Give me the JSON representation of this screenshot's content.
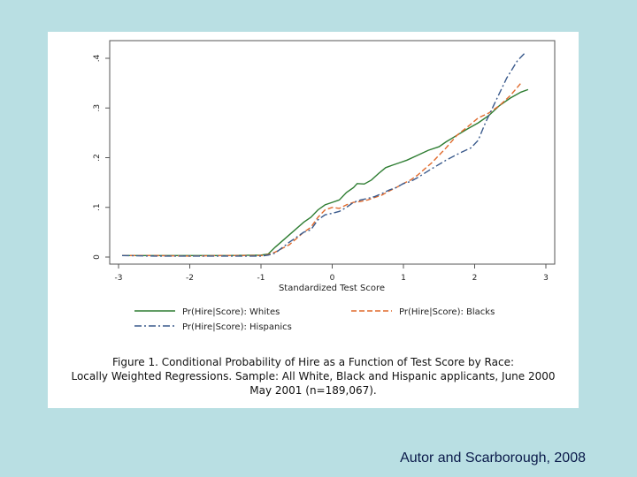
{
  "chart_data": {
    "type": "line",
    "xlabel": "Standardized Test Score",
    "ylabel": "",
    "xlim": [
      -3,
      3
    ],
    "ylim": [
      0,
      0.4
    ],
    "xticks": [
      "-3",
      "-2",
      "-1",
      "0",
      "1",
      "2",
      "3"
    ],
    "yticks": [
      "0",
      ".1",
      ".2",
      ".3",
      ".4"
    ],
    "grid": false,
    "legend_position": "bottom",
    "series": [
      {
        "name": "Pr(Hire|Score): Whites",
        "color": "#2e7d32",
        "style": "solid",
        "x": [
          -2.95,
          -2.5,
          -2.0,
          -1.5,
          -1.0,
          -0.9,
          -0.8,
          -0.6,
          -0.4,
          -0.3,
          -0.2,
          -0.1,
          0.0,
          0.1,
          0.2,
          0.3,
          0.35,
          0.45,
          0.55,
          0.65,
          0.75,
          0.85,
          0.95,
          1.05,
          1.2,
          1.35,
          1.5,
          1.6,
          1.75,
          1.9,
          2.05,
          2.2,
          2.35,
          2.5,
          2.65,
          2.75
        ],
        "y": [
          0.003,
          0.003,
          0.003,
          0.003,
          0.004,
          0.006,
          0.02,
          0.045,
          0.07,
          0.08,
          0.095,
          0.105,
          0.11,
          0.115,
          0.13,
          0.14,
          0.148,
          0.147,
          0.155,
          0.168,
          0.18,
          0.185,
          0.19,
          0.195,
          0.205,
          0.215,
          0.222,
          0.232,
          0.245,
          0.258,
          0.27,
          0.285,
          0.305,
          0.32,
          0.332,
          0.337
        ]
      },
      {
        "name": "Pr(Hire|Score): Blacks",
        "color": "#e06a2c",
        "style": "dashed",
        "x": [
          -2.95,
          -2.5,
          -2.0,
          -1.5,
          -1.0,
          -0.9,
          -0.8,
          -0.6,
          -0.4,
          -0.3,
          -0.2,
          -0.1,
          0.0,
          0.1,
          0.2,
          0.3,
          0.4,
          0.5,
          0.6,
          0.7,
          0.8,
          0.9,
          1.0,
          1.1,
          1.2,
          1.4,
          1.6,
          1.75,
          1.9,
          2.05,
          2.2,
          2.35,
          2.5,
          2.65
        ],
        "y": [
          0.003,
          0.003,
          0.002,
          0.003,
          0.003,
          0.005,
          0.01,
          0.025,
          0.05,
          0.06,
          0.08,
          0.095,
          0.1,
          0.098,
          0.105,
          0.11,
          0.112,
          0.115,
          0.12,
          0.125,
          0.133,
          0.14,
          0.148,
          0.155,
          0.165,
          0.19,
          0.22,
          0.245,
          0.262,
          0.28,
          0.29,
          0.305,
          0.325,
          0.35
        ]
      },
      {
        "name": "Pr(Hire|Score): Hispanics",
        "color": "#3a5a8c",
        "style": "dashdot",
        "x": [
          -2.95,
          -2.5,
          -2.0,
          -1.5,
          -1.0,
          -0.9,
          -0.8,
          -0.6,
          -0.4,
          -0.3,
          -0.2,
          -0.1,
          0.0,
          0.1,
          0.2,
          0.3,
          0.4,
          0.5,
          0.6,
          0.7,
          0.8,
          0.9,
          1.0,
          1.1,
          1.2,
          1.4,
          1.6,
          1.8,
          1.95,
          2.05,
          2.15,
          2.3,
          2.45,
          2.6,
          2.7
        ],
        "y": [
          0.003,
          0.002,
          0.002,
          0.002,
          0.002,
          0.004,
          0.008,
          0.03,
          0.05,
          0.055,
          0.075,
          0.085,
          0.088,
          0.092,
          0.1,
          0.11,
          0.115,
          0.118,
          0.122,
          0.128,
          0.135,
          0.14,
          0.148,
          0.152,
          0.16,
          0.178,
          0.195,
          0.21,
          0.22,
          0.235,
          0.27,
          0.315,
          0.36,
          0.395,
          0.41
        ]
      }
    ]
  },
  "caption": {
    "line1": "Figure 1. Conditional Probability of Hire as a Function of Test Score by Race:",
    "line2": "Locally Weighted Regressions. Sample: All White, Black and Hispanic applicants, June 2000",
    "line3": "May 2001 (n=189,067)."
  },
  "credit": "Autor and Scarborough, 2008"
}
